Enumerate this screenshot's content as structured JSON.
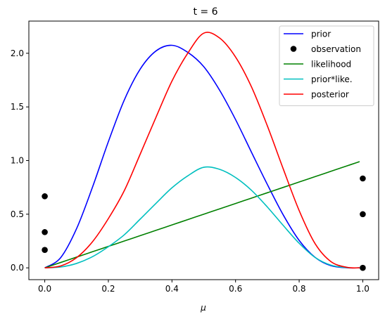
{
  "chart_data": {
    "type": "line",
    "title": "t = 6",
    "xlabel": "μ",
    "ylabel": "",
    "xlim": [
      -0.05,
      1.05
    ],
    "ylim": [
      -0.11,
      2.3
    ],
    "xticks": [
      "0.0",
      "0.2",
      "0.4",
      "0.6",
      "0.8",
      "1.0"
    ],
    "yticks": [
      "0.0",
      "0.5",
      "1.0",
      "1.5",
      "2.0"
    ],
    "grid": false,
    "legend_position": "upper right",
    "x": [
      0.0,
      0.05,
      0.1,
      0.15,
      0.2,
      0.25,
      0.3,
      0.35,
      0.4,
      0.45,
      0.5,
      0.55,
      0.6,
      0.65,
      0.7,
      0.75,
      0.8,
      0.85,
      0.9,
      0.95,
      0.99
    ],
    "series": [
      {
        "name": "prior",
        "color": "#0000ff",
        "style": "line",
        "values": [
          0.0,
          0.095,
          0.365,
          0.751,
          1.176,
          1.564,
          1.852,
          2.022,
          2.074,
          2.008,
          1.875,
          1.655,
          1.382,
          1.078,
          0.777,
          0.493,
          0.256,
          0.098,
          0.02,
          0.001,
          0.0
        ]
      },
      {
        "name": "likelihood",
        "color": "#008000",
        "style": "line",
        "values": [
          0.0,
          0.05,
          0.1,
          0.15,
          0.2,
          0.25,
          0.3,
          0.35,
          0.4,
          0.45,
          0.5,
          0.55,
          0.6,
          0.65,
          0.7,
          0.75,
          0.8,
          0.85,
          0.9,
          0.95,
          0.99
        ]
      },
      {
        "name": "prior*like.",
        "color": "#00bfbf",
        "style": "line",
        "values": [
          0.0,
          0.008,
          0.041,
          0.104,
          0.197,
          0.308,
          0.454,
          0.602,
          0.746,
          0.858,
          0.9375,
          0.918,
          0.842,
          0.723,
          0.567,
          0.395,
          0.229,
          0.097,
          0.025,
          0.002,
          0.0
        ]
      },
      {
        "name": "posterior",
        "color": "#ff0000",
        "style": "line",
        "values": [
          0.0,
          0.018,
          0.095,
          0.243,
          0.459,
          0.719,
          1.059,
          1.405,
          1.741,
          2.002,
          2.1875,
          2.142,
          1.965,
          1.687,
          1.323,
          0.922,
          0.534,
          0.226,
          0.058,
          0.005,
          0.0
        ]
      }
    ],
    "observations": {
      "name": "observation",
      "color": "#000000",
      "style": "scatter",
      "points": [
        {
          "x": 0.0,
          "y": 0.667
        },
        {
          "x": 0.0,
          "y": 0.333
        },
        {
          "x": 0.0,
          "y": 0.167
        },
        {
          "x": 1.0,
          "y": 0.833
        },
        {
          "x": 1.0,
          "y": 0.5
        },
        {
          "x": 1.0,
          "y": 0.0
        }
      ]
    },
    "legend": [
      "prior",
      "observation",
      "likelihood",
      "prior*like.",
      "posterior"
    ]
  }
}
